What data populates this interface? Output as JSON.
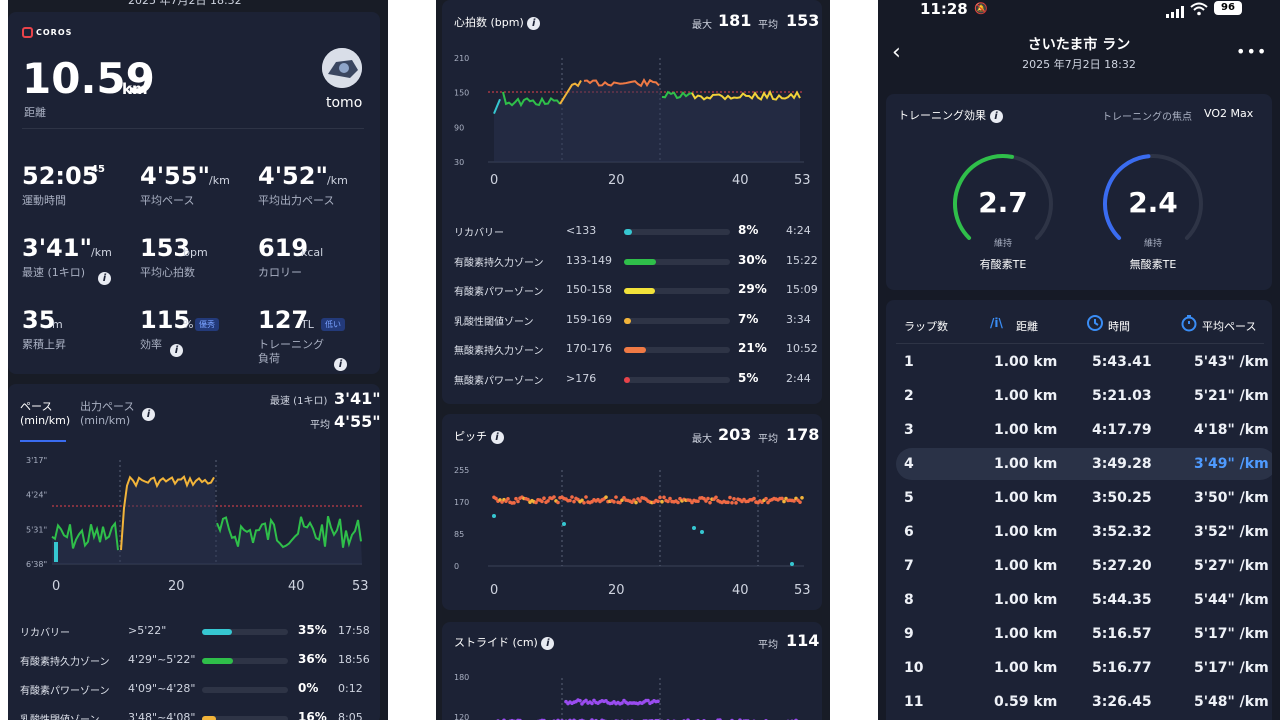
{
  "col1": {
    "top_date": "2025 年7月2日 18:32",
    "brand": "COROS",
    "distance": "10.59",
    "distance_unit": "km",
    "distance_label": "距離",
    "user_name": "tomo",
    "stats": [
      {
        "value": "52:05",
        "sup": "45",
        "unit": "",
        "label": "運動時間"
      },
      {
        "value": "4'55\"",
        "sup": "",
        "unit": "/km",
        "label": "平均ペース"
      },
      {
        "value": "4'52\"",
        "sup": "",
        "unit": "/km",
        "label": "平均出力ペース"
      },
      {
        "value": "3'41\"",
        "sup": "",
        "unit": "/km",
        "label": "最速 (1キロ)"
      },
      {
        "value": "153",
        "sup": "",
        "unit": "bpm",
        "label": "平均心拍数"
      },
      {
        "value": "619",
        "sup": "",
        "unit": "kcal",
        "label": "カロリー"
      },
      {
        "value": "35",
        "sup": "",
        "unit": "m",
        "label": "累積上昇"
      },
      {
        "value": "115",
        "sup": "",
        "unit": "%",
        "label": "効率",
        "badge": "優秀"
      },
      {
        "value": "127",
        "sup": "",
        "unit": "TL",
        "label": "トレーニング\n負荷",
        "badge": "低い"
      }
    ],
    "pace": {
      "tab1": "ペース\n(min/km)",
      "tab2": "出力ペース\n(min/km)",
      "fastest_label": "最速 (1キロ)",
      "fastest_value": "3'41\"",
      "avg_label": "平均",
      "avg_value": "4'55\"",
      "y_ticks": [
        "3'17\"",
        "4'24\"",
        "5'31\"",
        "6'38\""
      ],
      "x_ticks": [
        "0",
        "20",
        "40",
        "53"
      ],
      "zones": [
        {
          "name": "リカバリー",
          "range": ">5'22\"",
          "pct": "35%",
          "time": "17:58",
          "fill": 0.35,
          "color": "#36c7d1"
        },
        {
          "name": "有酸素持久力ゾーン",
          "range": "4'29\"~5'22\"",
          "pct": "36%",
          "time": "18:56",
          "fill": 0.36,
          "color": "#2fbf4a"
        },
        {
          "name": "有酸素パワーゾーン",
          "range": "4'09\"~4'28\"",
          "pct": "0%",
          "time": "0:12",
          "fill": 0.0,
          "color": "#f2d33a"
        },
        {
          "name": "乳酸性閾値ゾーン",
          "range": "3'48\"~4'08\"",
          "pct": "16%",
          "time": "8:05",
          "fill": 0.16,
          "color": "#f2b43a"
        }
      ]
    }
  },
  "col2": {
    "hr": {
      "title": "心拍数 (bpm)",
      "max_label": "最大",
      "max_value": "181",
      "avg_label": "平均",
      "avg_value": "153",
      "y_ticks": [
        "210",
        "150",
        "90",
        "30"
      ],
      "x_ticks": [
        "0",
        "20",
        "40",
        "53"
      ],
      "zones": [
        {
          "name": "リカバリー",
          "range": "<133",
          "pct": "8%",
          "time": "4:24",
          "fill": 0.08,
          "color": "#36c7d1"
        },
        {
          "name": "有酸素持久力ゾーン",
          "range": "133-149",
          "pct": "30%",
          "time": "15:22",
          "fill": 0.3,
          "color": "#2fbf4a"
        },
        {
          "name": "有酸素パワーゾーン",
          "range": "150-158",
          "pct": "29%",
          "time": "15:09",
          "fill": 0.29,
          "color": "#f2e23a"
        },
        {
          "name": "乳酸性閾値ゾーン",
          "range": "159-169",
          "pct": "7%",
          "time": "3:34",
          "fill": 0.07,
          "color": "#f2b43a"
        },
        {
          "name": "無酸素持久力ゾーン",
          "range": "170-176",
          "pct": "21%",
          "time": "10:52",
          "fill": 0.21,
          "color": "#f07a45"
        },
        {
          "name": "無酸素パワーゾーン",
          "range": ">176",
          "pct": "5%",
          "time": "2:44",
          "fill": 0.05,
          "color": "#e8434a"
        }
      ]
    },
    "cadence": {
      "title": "ピッチ",
      "max_label": "最大",
      "max_value": "203",
      "avg_label": "平均",
      "avg_value": "178",
      "y_ticks": [
        "255",
        "170",
        "85",
        "0"
      ],
      "x_ticks": [
        "0",
        "20",
        "40",
        "53"
      ]
    },
    "stride": {
      "title": "ストライド (cm)",
      "avg_label": "平均",
      "avg_value": "114",
      "y_ticks": [
        "180",
        "120"
      ]
    }
  },
  "col3": {
    "status": {
      "time": "11:28",
      "battery": "96"
    },
    "title": "さいたま市 ラン",
    "subtitle": "2025 年7月2日 18:32",
    "te": {
      "title": "トレーニング効果",
      "focus_label": "トレーニングの焦点",
      "focus_value": "VO2 Max",
      "aerobic_value": "2.7",
      "aerobic_state": "維持",
      "aerobic_label": "有酸素TE",
      "anaerobic_value": "2.4",
      "anaerobic_state": "維持",
      "anaerobic_label": "無酸素TE"
    },
    "laps": {
      "headers": [
        "ラップ数",
        "距離",
        "時間",
        "平均ペース"
      ],
      "rows": [
        {
          "n": "1",
          "dist": "1.00 km",
          "time": "5:43.41",
          "pace": "5'43\" /km"
        },
        {
          "n": "2",
          "dist": "1.00 km",
          "time": "5:21.03",
          "pace": "5'21\" /km"
        },
        {
          "n": "3",
          "dist": "1.00 km",
          "time": "4:17.79",
          "pace": "4'18\" /km"
        },
        {
          "n": "4",
          "dist": "1.00 km",
          "time": "3:49.28",
          "pace": "3'49\" /km"
        },
        {
          "n": "5",
          "dist": "1.00 km",
          "time": "3:50.25",
          "pace": "3'50\" /km"
        },
        {
          "n": "6",
          "dist": "1.00 km",
          "time": "3:52.32",
          "pace": "3'52\" /km"
        },
        {
          "n": "7",
          "dist": "1.00 km",
          "time": "5:27.20",
          "pace": "5'27\" /km"
        },
        {
          "n": "8",
          "dist": "1.00 km",
          "time": "5:44.35",
          "pace": "5'44\" /km"
        },
        {
          "n": "9",
          "dist": "1.00 km",
          "time": "5:16.57",
          "pace": "5'17\" /km"
        },
        {
          "n": "10",
          "dist": "1.00 km",
          "time": "5:16.77",
          "pace": "5'17\" /km"
        },
        {
          "n": "11",
          "dist": "0.59 km",
          "time": "3:26.45",
          "pace": "5'48\" /km"
        }
      ]
    }
  }
}
